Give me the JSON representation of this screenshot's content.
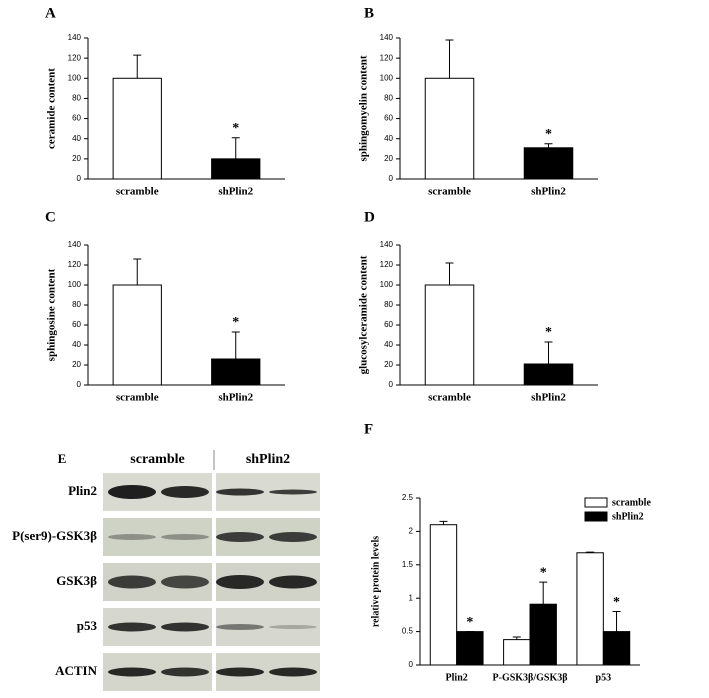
{
  "chart_data": [
    {
      "type": "bar",
      "panel": "A",
      "ylabel": "ceramide content",
      "categories": [
        "scramble",
        "shPlin2"
      ],
      "values": [
        100,
        20
      ],
      "errors": [
        23,
        21
      ],
      "colors": [
        "#ffffff",
        "#000000"
      ],
      "annotations": [
        null,
        "*"
      ],
      "ylim": [
        0,
        140
      ],
      "yticks": [
        0,
        20,
        40,
        60,
        80,
        100,
        120,
        140
      ]
    },
    {
      "type": "bar",
      "panel": "B",
      "ylabel": "sphingomyelin content",
      "categories": [
        "scramble",
        "shPlin2"
      ],
      "values": [
        100,
        31
      ],
      "errors": [
        38,
        4
      ],
      "colors": [
        "#ffffff",
        "#000000"
      ],
      "annotations": [
        null,
        "*"
      ],
      "ylim": [
        0,
        140
      ],
      "yticks": [
        0,
        20,
        40,
        60,
        80,
        100,
        120,
        140
      ]
    },
    {
      "type": "bar",
      "panel": "C",
      "ylabel": "sphingosine content",
      "categories": [
        "scramble",
        "shPlin2"
      ],
      "values": [
        100,
        26
      ],
      "errors": [
        26,
        27
      ],
      "colors": [
        "#ffffff",
        "#000000"
      ],
      "annotations": [
        null,
        "*"
      ],
      "ylim": [
        0,
        140
      ],
      "yticks": [
        0,
        20,
        40,
        60,
        80,
        100,
        120,
        140
      ]
    },
    {
      "type": "bar",
      "panel": "D",
      "ylabel": "glucosylceramide content",
      "categories": [
        "scramble",
        "shPlin2"
      ],
      "values": [
        100,
        21
      ],
      "errors": [
        22,
        22
      ],
      "colors": [
        "#ffffff",
        "#000000"
      ],
      "annotations": [
        null,
        "*"
      ],
      "ylim": [
        0,
        140
      ],
      "yticks": [
        0,
        20,
        40,
        60,
        80,
        100,
        120,
        140
      ]
    },
    {
      "type": "bar",
      "panel": "F",
      "ylabel": "relative protein levels",
      "categories": [
        "Plin2",
        "P-GSK3β/GSK3β",
        "p53"
      ],
      "series": [
        {
          "name": "scramble",
          "color": "#ffffff",
          "values": [
            2.1,
            0.38,
            1.68
          ],
          "errors": [
            0.05,
            0.04,
            0.01
          ]
        },
        {
          "name": "shPlin2",
          "color": "#000000",
          "values": [
            0.5,
            0.91,
            0.5
          ],
          "errors": [
            0,
            0.33,
            0.3
          ],
          "annotations": [
            "*",
            "*",
            "*"
          ]
        }
      ],
      "ylim": [
        0,
        2.5
      ],
      "yticks": [
        0,
        0.5,
        1,
        1.5,
        2,
        2.5
      ],
      "legend": "upper right"
    }
  ],
  "blot": {
    "panel": "E",
    "columns": [
      "scramble",
      "shPlin2"
    ],
    "rows": [
      "Plin2",
      "P(ser9)-GSK3β",
      "GSK3β",
      "p53",
      "ACTIN"
    ]
  }
}
